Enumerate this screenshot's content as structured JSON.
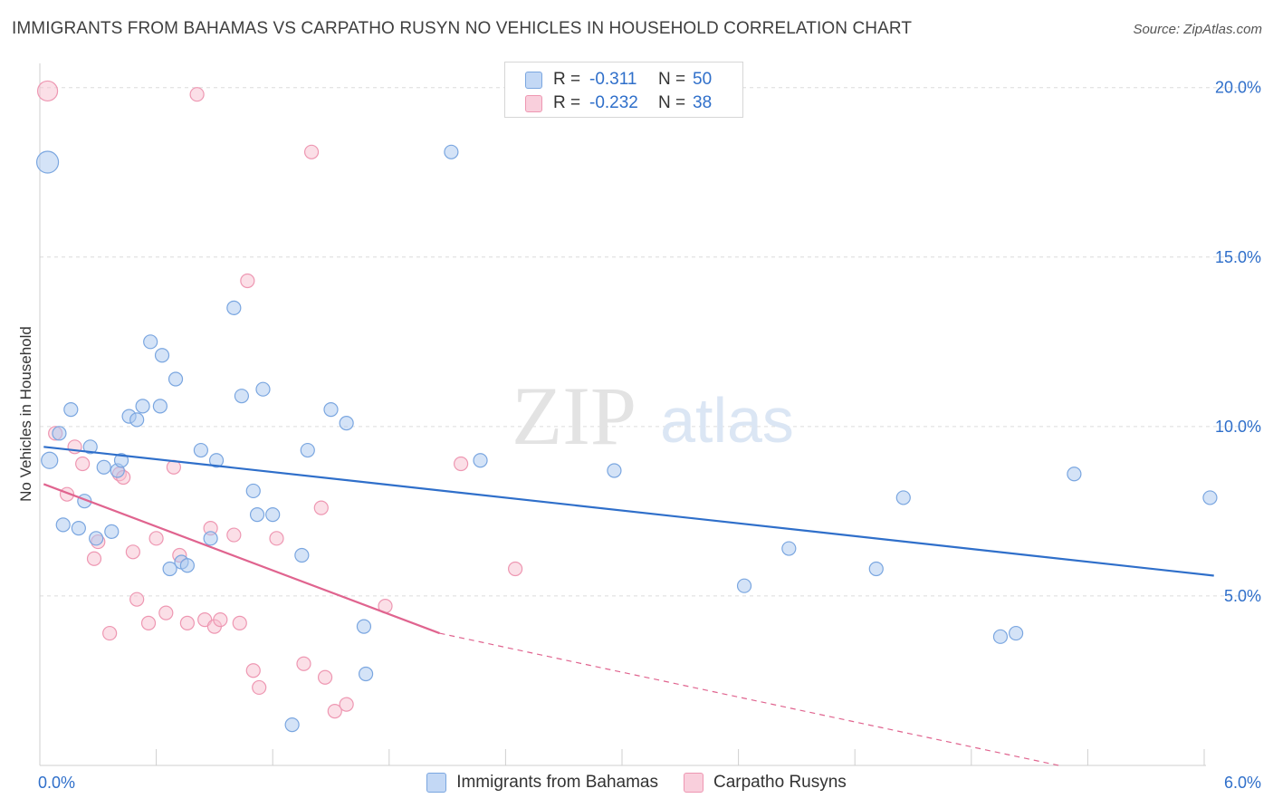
{
  "title": "IMMIGRANTS FROM BAHAMAS VS CARPATHO RUSYN NO VEHICLES IN HOUSEHOLD CORRELATION CHART",
  "source": "Source: ZipAtlas.com",
  "watermark": {
    "zip": "ZIP",
    "atlas": "atlas"
  },
  "legend": {
    "rows": [
      {
        "r_label": "R =",
        "r_value": "-0.311",
        "n_label": "N =",
        "n_value": "50"
      },
      {
        "r_label": "R =",
        "r_value": "-0.232",
        "n_label": "N =",
        "n_value": "38"
      }
    ]
  },
  "chart_data": {
    "type": "scatter",
    "title": "IMMIGRANTS FROM BAHAMAS VS CARPATHO RUSYN NO VEHICLES IN HOUSEHOLD CORRELATION CHART",
    "xlabel": "",
    "ylabel": "No Vehicles in Household",
    "xlim": [
      0,
      6
    ],
    "ylim": [
      0,
      20.5
    ],
    "x_tick_labels": [
      "0.0%",
      "6.0%"
    ],
    "y_ticks": [
      5,
      10,
      15,
      20
    ],
    "y_tick_labels": [
      "5.0%",
      "10.0%",
      "15.0%",
      "20.0%"
    ],
    "grid": "horizontal dashed",
    "legend_position": "top-center",
    "colors": {
      "blue_fill": "#aac8f0",
      "blue_stroke": "#7aa6e0",
      "blue_line": "#2f6fca",
      "pink_fill": "#f7bfd0",
      "pink_stroke": "#ee97b2",
      "pink_line": "#e0648f",
      "tick_text": "#2f6fca"
    },
    "series": [
      {
        "name": "Immigrants from Bahamas",
        "color": "#aac8f0",
        "points": [
          [
            0.04,
            17.8,
            24
          ],
          [
            0.05,
            9.0,
            18
          ],
          [
            0.1,
            9.8,
            15
          ],
          [
            0.16,
            10.5,
            15
          ],
          [
            0.23,
            7.8,
            15
          ],
          [
            0.12,
            7.1,
            15
          ],
          [
            0.2,
            7.0,
            15
          ],
          [
            0.26,
            9.4,
            15
          ],
          [
            0.29,
            6.7,
            15
          ],
          [
            0.33,
            8.8,
            15
          ],
          [
            0.37,
            6.9,
            15
          ],
          [
            0.4,
            8.7,
            15
          ],
          [
            0.42,
            9.0,
            15
          ],
          [
            0.46,
            10.3,
            15
          ],
          [
            0.5,
            10.2,
            15
          ],
          [
            0.53,
            10.6,
            15
          ],
          [
            0.57,
            12.5,
            15
          ],
          [
            0.62,
            10.6,
            15
          ],
          [
            0.63,
            12.1,
            15
          ],
          [
            0.67,
            5.8,
            15
          ],
          [
            0.7,
            11.4,
            15
          ],
          [
            0.73,
            6.0,
            15
          ],
          [
            0.76,
            5.9,
            15
          ],
          [
            0.83,
            9.3,
            15
          ],
          [
            0.88,
            6.7,
            15
          ],
          [
            0.91,
            9.0,
            15
          ],
          [
            1.0,
            13.5,
            15
          ],
          [
            1.04,
            10.9,
            15
          ],
          [
            1.1,
            8.1,
            15
          ],
          [
            1.12,
            7.4,
            15
          ],
          [
            1.15,
            11.1,
            15
          ],
          [
            1.2,
            7.4,
            15
          ],
          [
            1.3,
            1.2,
            15
          ],
          [
            1.35,
            6.2,
            15
          ],
          [
            1.38,
            9.3,
            15
          ],
          [
            1.5,
            10.5,
            15
          ],
          [
            1.58,
            10.1,
            15
          ],
          [
            1.67,
            4.1,
            15
          ],
          [
            1.68,
            2.7,
            15
          ],
          [
            2.12,
            18.1,
            15
          ],
          [
            2.27,
            9.0,
            15
          ],
          [
            2.96,
            8.7,
            15
          ],
          [
            3.63,
            5.3,
            15
          ],
          [
            3.86,
            6.4,
            15
          ],
          [
            4.31,
            5.8,
            15
          ],
          [
            4.45,
            7.9,
            15
          ],
          [
            4.95,
            3.8,
            15
          ],
          [
            5.03,
            3.9,
            15
          ],
          [
            5.33,
            8.6,
            15
          ],
          [
            6.03,
            7.9,
            15
          ]
        ],
        "trend": {
          "x": [
            0.02,
            6.05
          ],
          "y": [
            9.4,
            5.6
          ]
        }
      },
      {
        "name": "Carpatho Rusyns",
        "color": "#f7bfd0",
        "points": [
          [
            0.04,
            19.9,
            22
          ],
          [
            0.08,
            9.8,
            15
          ],
          [
            0.14,
            8.0,
            15
          ],
          [
            0.18,
            9.4,
            15
          ],
          [
            0.22,
            8.9,
            15
          ],
          [
            0.28,
            6.1,
            15
          ],
          [
            0.3,
            6.6,
            15
          ],
          [
            0.36,
            3.9,
            15
          ],
          [
            0.41,
            8.6,
            15
          ],
          [
            0.43,
            8.5,
            15
          ],
          [
            0.48,
            6.3,
            15
          ],
          [
            0.5,
            4.9,
            15
          ],
          [
            0.56,
            4.2,
            15
          ],
          [
            0.6,
            6.7,
            15
          ],
          [
            0.65,
            4.5,
            15
          ],
          [
            0.69,
            8.8,
            15
          ],
          [
            0.72,
            6.2,
            15
          ],
          [
            0.76,
            4.2,
            15
          ],
          [
            0.81,
            19.8,
            15
          ],
          [
            0.85,
            4.3,
            15
          ],
          [
            0.88,
            7.0,
            15
          ],
          [
            0.9,
            4.1,
            15
          ],
          [
            0.93,
            4.3,
            15
          ],
          [
            1.0,
            6.8,
            15
          ],
          [
            1.03,
            4.2,
            15
          ],
          [
            1.07,
            14.3,
            15
          ],
          [
            1.1,
            2.8,
            15
          ],
          [
            1.13,
            2.3,
            15
          ],
          [
            1.22,
            6.7,
            15
          ],
          [
            1.36,
            3.0,
            15
          ],
          [
            1.4,
            18.1,
            15
          ],
          [
            1.45,
            7.6,
            15
          ],
          [
            1.47,
            2.6,
            15
          ],
          [
            1.52,
            1.6,
            15
          ],
          [
            1.58,
            1.8,
            15
          ],
          [
            1.78,
            4.7,
            15
          ],
          [
            2.17,
            8.9,
            15
          ],
          [
            2.45,
            5.8,
            15
          ]
        ],
        "trend": {
          "x": [
            0.02,
            2.06
          ],
          "y": [
            8.3,
            3.9
          ]
        },
        "trend_extension": {
          "x": [
            2.06,
            5.25
          ],
          "y": [
            3.9,
            0.0
          ]
        }
      }
    ]
  }
}
